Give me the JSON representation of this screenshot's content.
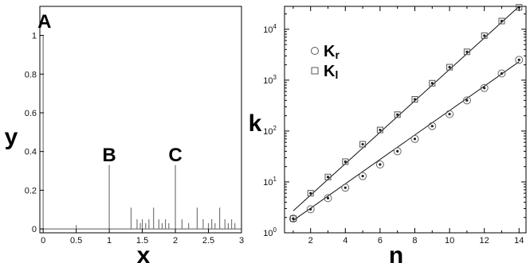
{
  "chart_data": [
    {
      "type": "bar",
      "xlabel": "x",
      "ylabel": "y",
      "xlim": [
        -0.05,
        3.0
      ],
      "ylim": [
        -0.02,
        1.15
      ],
      "xticks": [
        "0",
        "0.5",
        "1",
        "1.5",
        "2",
        "2.5",
        "3"
      ],
      "xtick_values": [
        0,
        0.5,
        1,
        1.5,
        2,
        2.5,
        3
      ],
      "yticks": [
        "0",
        "0.2",
        "0.4",
        "0.6",
        "0.8",
        "1"
      ],
      "ytick_values": [
        0,
        0.2,
        0.4,
        0.6,
        0.8,
        1
      ],
      "grid": false,
      "spikes": {
        "x": [
          0,
          0.5,
          1.0,
          1.33,
          1.42,
          1.47,
          1.5,
          1.55,
          1.6,
          1.67,
          1.75,
          1.8,
          1.85,
          1.9,
          2.0,
          2.1,
          2.2,
          2.33,
          2.42,
          2.5,
          2.55,
          2.6,
          2.67,
          2.75,
          2.8,
          2.85,
          2.9
        ],
        "y": [
          1.0,
          0.02,
          0.33,
          0.11,
          0.05,
          0.03,
          0.05,
          0.03,
          0.05,
          0.11,
          0.05,
          0.03,
          0.05,
          0.03,
          0.33,
          0.05,
          0.03,
          0.11,
          0.05,
          0.03,
          0.05,
          0.03,
          0.11,
          0.05,
          0.03,
          0.05,
          0.03
        ]
      },
      "annotations": [
        {
          "text": "A",
          "x": 0.02,
          "y": 1.08
        },
        {
          "text": "B",
          "x": 1.0,
          "y": 0.39
        },
        {
          "text": "C",
          "x": 2.0,
          "y": 0.39
        }
      ]
    },
    {
      "type": "scatter",
      "xlabel": "n",
      "ylabel": "k",
      "xlim": [
        0.5,
        14.4
      ],
      "ylim_log10": [
        0,
        4.45
      ],
      "yscale": "log",
      "xticks": [
        "2",
        "4",
        "6",
        "8",
        "10",
        "12",
        "14"
      ],
      "xtick_values": [
        2,
        4,
        6,
        8,
        10,
        12,
        14
      ],
      "ytick_values": [
        1,
        10,
        100,
        1000,
        10000
      ],
      "ytick_labels": [
        {
          "base": "10",
          "exp": "0"
        },
        {
          "base": "10",
          "exp": "1"
        },
        {
          "base": "10",
          "exp": "2"
        },
        {
          "base": "10",
          "exp": "3"
        },
        {
          "base": "10",
          "exp": "4"
        }
      ],
      "grid": false,
      "legend": {
        "placement": "top-left",
        "entries": [
          {
            "marker": "circle",
            "base": "K",
            "sub": "r"
          },
          {
            "marker": "square",
            "base": "K",
            "sub": "l"
          }
        ]
      },
      "series": [
        {
          "marker": "circle",
          "x": [
            1,
            2,
            3,
            4,
            5,
            6,
            7,
            8,
            9,
            10,
            11,
            12,
            13,
            14
          ],
          "y": [
            1.9,
            2.9,
            4.8,
            7.7,
            13,
            22,
            40,
            70,
            125,
            215,
            400,
            700,
            1350,
            2500
          ],
          "fit": {
            "x": [
              1,
              14
            ],
            "y": [
              1.75,
              2300
            ]
          }
        },
        {
          "marker": "square",
          "x": [
            1,
            2,
            3,
            4,
            5,
            6,
            7,
            8,
            9,
            10,
            11,
            12,
            13,
            14
          ],
          "y": [
            1.9,
            6,
            12.5,
            25,
            55,
            105,
            210,
            420,
            870,
            1800,
            3600,
            7500,
            14500,
            27000
          ],
          "fit": {
            "x": [
              1,
              14
            ],
            "y": [
              2.7,
              28000
            ]
          }
        }
      ]
    }
  ]
}
